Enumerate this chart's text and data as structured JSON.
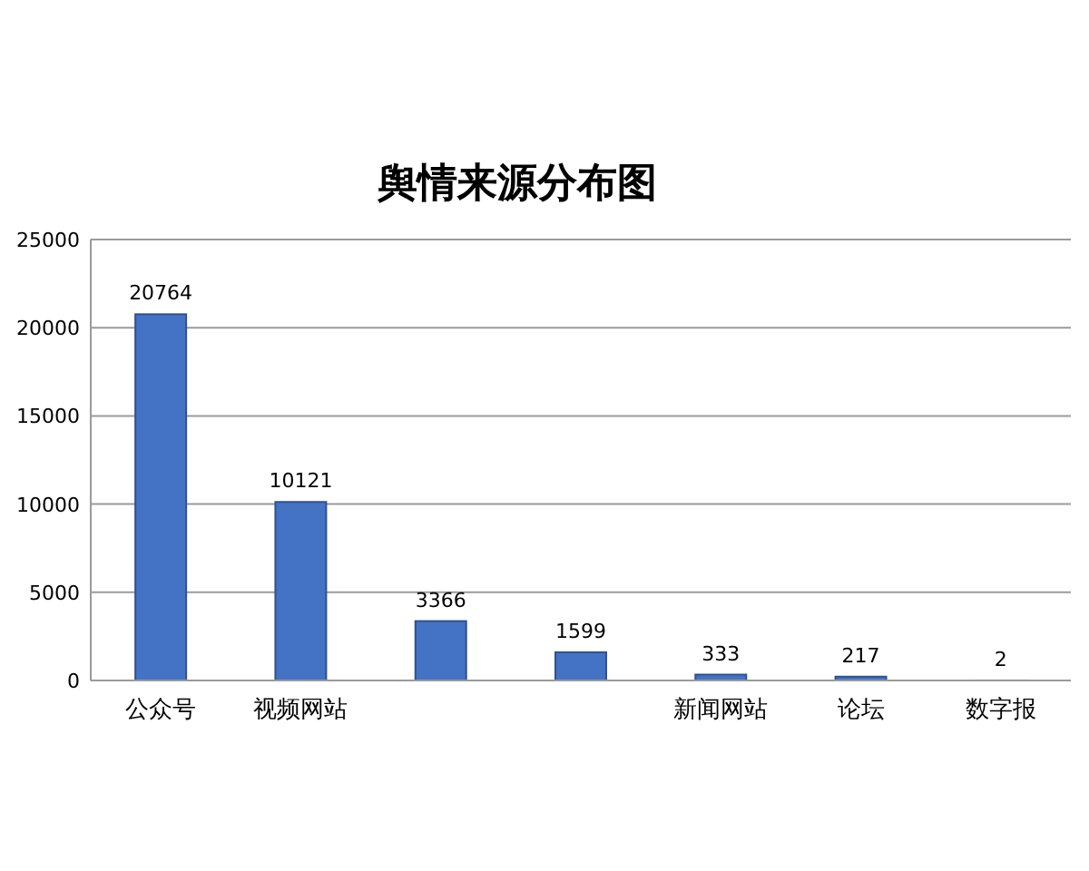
{
  "chart_data": {
    "type": "bar",
    "title": "舆情来源分布图",
    "categories": [
      "公众号",
      "视频网站",
      null,
      null,
      "新闻网站",
      "论坛",
      "数字报"
    ],
    "values": [
      20764,
      10121,
      3366,
      1599,
      333,
      217,
      2
    ],
    "color": "#4472c4",
    "ylim": [
      0,
      25000
    ],
    "yticks": [
      0,
      5000,
      10000,
      15000,
      20000,
      25000
    ],
    "grid": "y",
    "data_labels": true
  }
}
